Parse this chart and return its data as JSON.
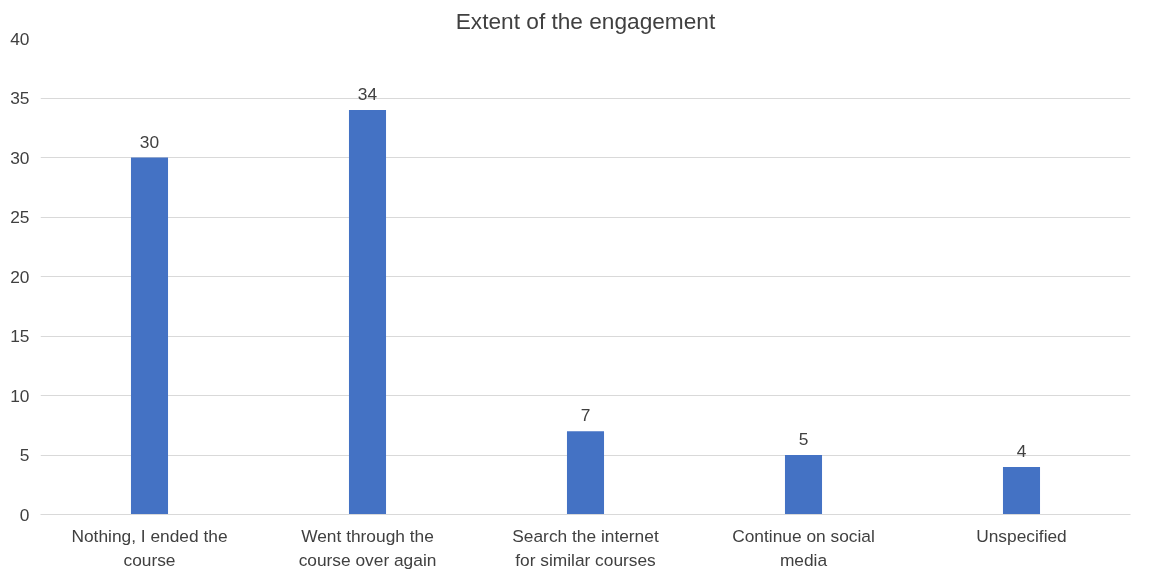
{
  "chart_data": {
    "type": "bar",
    "title": "Extent of the engagement",
    "categories": [
      "Nothing, I ended the course",
      "Went through the course over again",
      "Search the internet for similar courses",
      "Continue on social media",
      "Unspecified"
    ],
    "values": [
      30,
      34,
      7,
      5,
      4
    ],
    "color": "#4472c4",
    "ylim": [
      0,
      40
    ],
    "yticks": [
      0,
      5,
      10,
      15,
      20,
      25,
      30,
      35,
      40
    ],
    "grid": "y",
    "data_labels": true
  }
}
